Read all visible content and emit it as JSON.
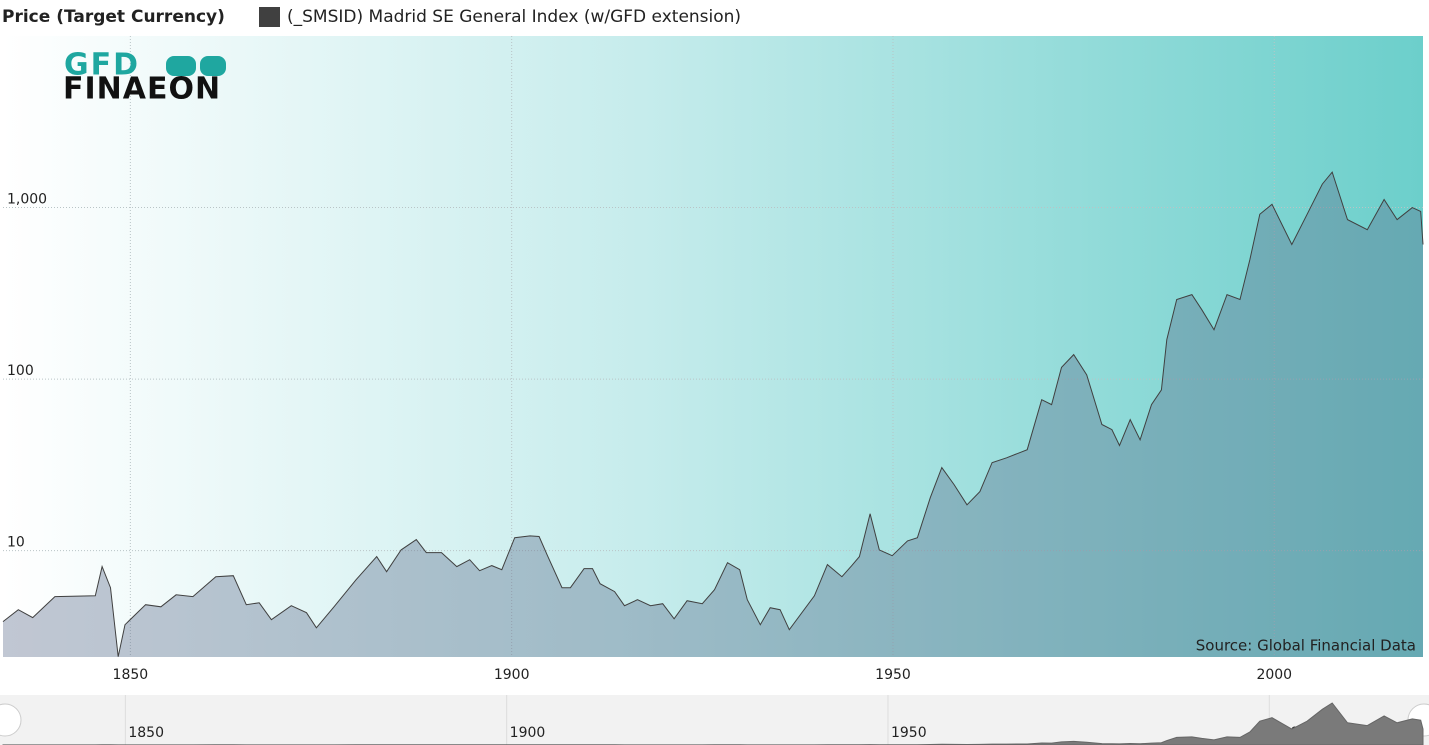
{
  "chart_data": {
    "type": "area",
    "title": "Price (Target Currency)",
    "logo": [
      "GFD",
      "FINAEON"
    ],
    "annotation": "Source: Global Financial Data",
    "log_scale": true,
    "grid": true,
    "xlim": [
      1833.3,
      2019.5
    ],
    "xticks": [
      1850,
      1900,
      1950,
      2000
    ],
    "ylim": [
      2.4,
      10000
    ],
    "yticks": [
      10,
      100,
      {
        "value": 1000,
        "label": "1,000"
      }
    ],
    "x": [
      1833.3,
      1835.3,
      1837.2,
      1840.1,
      1845.4,
      1846.3,
      1847.4,
      1848.4,
      1849.3,
      1852.0,
      1854.0,
      1856.0,
      1858.2,
      1861.2,
      1863.5,
      1865.2,
      1866.9,
      1868.5,
      1871.1,
      1873.1,
      1874.4,
      1876.7,
      1879.6,
      1882.3,
      1883.6,
      1885.5,
      1887.5,
      1888.8,
      1890.8,
      1892.8,
      1894.5,
      1895.8,
      1897.4,
      1898.7,
      1900.4,
      1902.4,
      1903.6,
      1904.7,
      1906.6,
      1907.7,
      1909.5,
      1910.6,
      1911.6,
      1913.5,
      1914.8,
      1916.5,
      1918.2,
      1919.8,
      1921.3,
      1923.0,
      1925.0,
      1926.6,
      1928.3,
      1929.9,
      1930.9,
      1932.6,
      1933.9,
      1935.2,
      1936.4,
      1939.7,
      1941.4,
      1943.3,
      1944.6,
      1945.6,
      1947.0,
      1948.2,
      1949.9,
      1951.9,
      1953.2,
      1954.9,
      1956.4,
      1958.0,
      1959.7,
      1961.4,
      1963.0,
      1964.9,
      1967.6,
      1969.5,
      1970.8,
      1972.1,
      1973.7,
      1975.4,
      1977.4,
      1978.7,
      1979.7,
      1981.1,
      1982.4,
      1983.9,
      1985.2,
      1985.9,
      1987.2,
      1989.2,
      1990.5,
      1992.1,
      1993.8,
      1995.5,
      1996.8,
      1998.1,
      1999.7,
      2002.3,
      2004.3,
      2006.3,
      2007.6,
      2009.6,
      2012.2,
      2014.4,
      2016.1,
      2018.1,
      2019.2,
      2019.5
    ],
    "series": [
      {
        "name": "(_SMSID) Madrid SE General Index (w/GFD extension)",
        "color": "#404040",
        "values": [
          3.86,
          4.53,
          4.07,
          5.4,
          5.46,
          8.07,
          6.08,
          2.41,
          3.7,
          4.84,
          4.71,
          5.53,
          5.4,
          7.05,
          7.15,
          4.84,
          4.97,
          3.96,
          4.78,
          4.35,
          3.55,
          4.71,
          6.77,
          9.23,
          7.54,
          10.1,
          11.6,
          9.74,
          9.74,
          8.07,
          8.86,
          7.64,
          8.18,
          7.75,
          11.9,
          12.2,
          12.1,
          9.35,
          6.08,
          6.08,
          7.86,
          7.86,
          6.42,
          5.77,
          4.78,
          5.18,
          4.78,
          4.91,
          4.01,
          5.11,
          4.91,
          5.92,
          8.51,
          7.75,
          5.18,
          3.7,
          4.65,
          4.53,
          3.46,
          5.46,
          8.29,
          7.05,
          8.18,
          9.23,
          16.4,
          10.1,
          9.35,
          11.4,
          11.9,
          20.4,
          30.5,
          24.3,
          18.5,
          22.1,
          32.6,
          34.8,
          38.8,
          75.9,
          71,
          117,
          139,
          106,
          54.4,
          50.8,
          41,
          58.1,
          44.3,
          71,
          86.5,
          170,
          291,
          311,
          254,
          194,
          311,
          291,
          498,
          913,
          1045,
          609,
          913,
          1370,
          1610,
          851,
          743,
          1114,
          851,
          1000,
          950,
          609
        ]
      }
    ]
  }
}
